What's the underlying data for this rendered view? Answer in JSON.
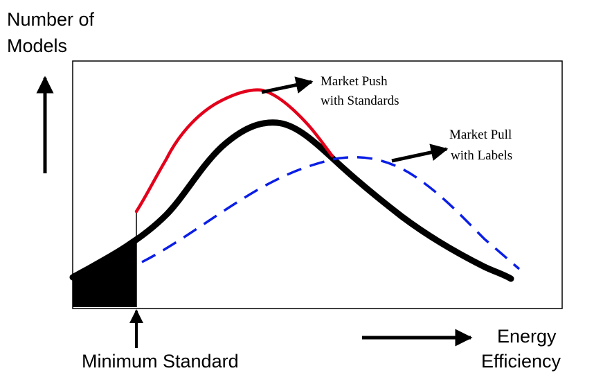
{
  "axis_labels": {
    "y_line1": "Number of",
    "y_line2": "Models",
    "x_line1": "Energy",
    "x_line2": "Efficiency",
    "threshold": "Minimum Standard"
  },
  "annotations": {
    "push_line1": "Market Push",
    "push_line2": "with Standards",
    "pull_line1": "Market Pull",
    "pull_line2": "with Labels"
  },
  "colors": {
    "baseline_curve": "#000000",
    "push_curve": "#e3001b",
    "pull_curve": "#0a1ee6",
    "frame": "#000000"
  }
}
